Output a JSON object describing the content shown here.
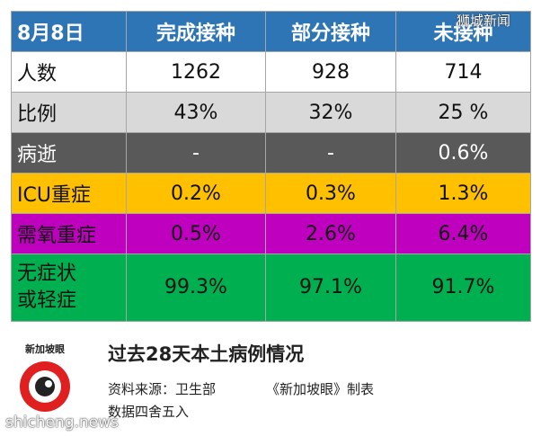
{
  "table": {
    "header": [
      "8月8日",
      "完成接种",
      "部分接种",
      "未接种"
    ],
    "rows": [
      [
        "人数",
        "1262",
        "928",
        "714"
      ],
      [
        "比例",
        "43%",
        "32%",
        "25 %"
      ],
      [
        "病逝",
        "-",
        "-",
        "0.6%"
      ],
      [
        "ICU重症",
        "0.2%",
        "0.3%",
        "1.3%"
      ],
      [
        "需氧重症",
        "0.5%",
        "2.6%",
        "6.4%"
      ],
      [
        "无症状\n或轻症",
        "99.3%",
        "97.1%",
        "91.7%"
      ]
    ]
  },
  "caption": {
    "title": "过去28天本土病例情况",
    "source": "资料来源：卫生部",
    "maker": "《新加坡眼》制表",
    "note": "数据四舍五入"
  },
  "logo": "新加坡眼",
  "watermarks": [
    "狮城新闻",
    "shicheng.news"
  ]
}
